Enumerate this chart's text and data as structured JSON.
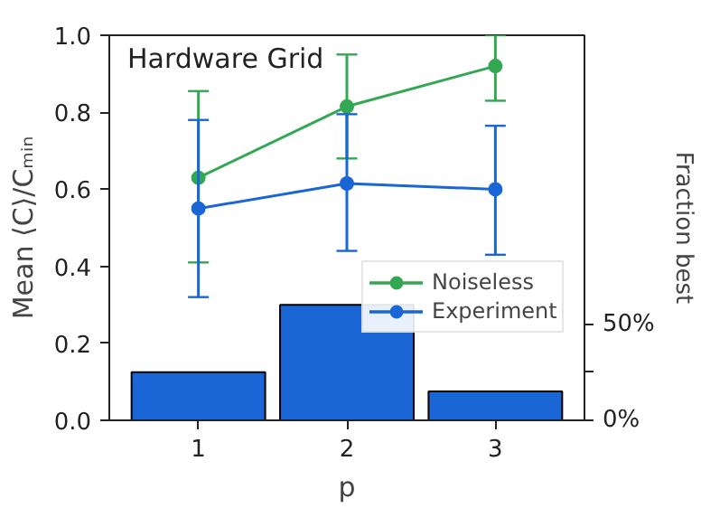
{
  "chart_data": {
    "type": "line",
    "annotations": [
      "Hardware Grid"
    ],
    "x": [
      1,
      2,
      3
    ],
    "xlabel": "p",
    "ylabel": "Mean ⟨C⟩/Cₘᵢₙ",
    "y2label": "Fraction best",
    "xlim": [
      0.4,
      3.6
    ],
    "xticks": [
      1,
      2,
      3
    ],
    "ylim": [
      0,
      1.0
    ],
    "yticks": [
      {
        "value": 0,
        "label": "0.0"
      },
      0.2,
      0.4,
      0.6,
      0.8,
      {
        "value": 1.0,
        "label": "1.0"
      }
    ],
    "y2lim": [
      0,
      200
    ],
    "y2ticks": [
      {
        "value": 0,
        "label": "0%"
      },
      {
        "value": 25,
        "label": null
      },
      {
        "value": 50,
        "label": "50%"
      }
    ],
    "series": [
      {
        "type": "bar",
        "axis": "y2",
        "color": "#1a66d6",
        "values": [
          25,
          60,
          15
        ]
      },
      {
        "name": "Noiseless",
        "color": "#33a852",
        "values": [
          0.63,
          0.815,
          0.92
        ],
        "errors": [
          [
            0.41,
            0.855
          ],
          [
            0.68,
            0.95
          ],
          [
            0.83,
            1.0
          ]
        ]
      },
      {
        "name": "Experiment",
        "color": "#1a66d6",
        "values": [
          0.55,
          0.615,
          0.6
        ],
        "errors": [
          [
            0.32,
            0.78
          ],
          [
            0.44,
            0.795
          ],
          [
            0.43,
            0.765
          ]
        ]
      }
    ],
    "marker": "circle",
    "legend": "center right",
    "grid": false
  }
}
